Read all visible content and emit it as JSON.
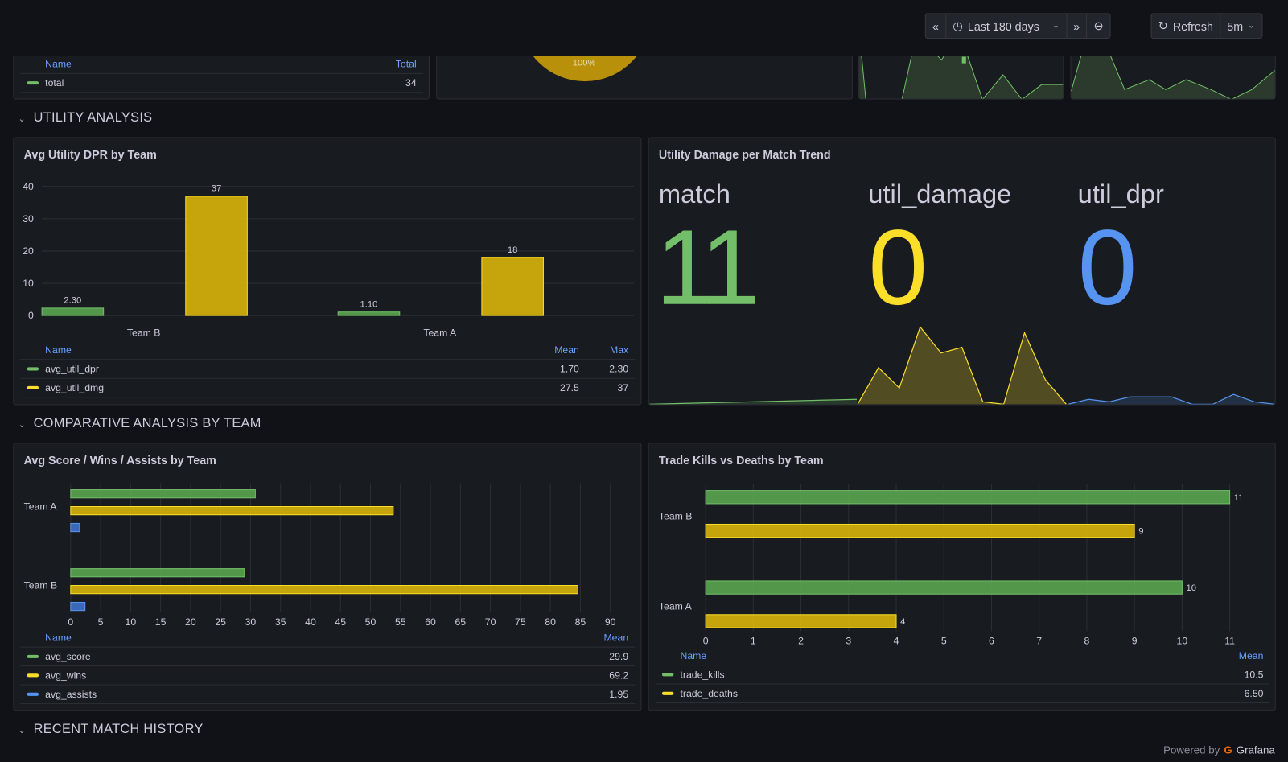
{
  "toolbar": {
    "back_label": "«",
    "time_range": "Last 180 days",
    "forward_label": "»",
    "refresh_label": "Refresh",
    "interval": "5m"
  },
  "top_panels": {
    "legend_header_name": "Name",
    "legend_header_total": "Total",
    "legend_row_name": "total",
    "legend_row_total": "34",
    "pie_label": "100%"
  },
  "rows": {
    "utility": "UTILITY ANALYSIS",
    "comparative": "COMPARATIVE ANALYSIS BY TEAM",
    "recent": "RECENT MATCH HISTORY"
  },
  "footer": {
    "powered_by": "Powered by",
    "brand": "Grafana"
  },
  "colors": {
    "green": "#73bf69",
    "yellow": "#fade2a",
    "blue": "#5794f2",
    "bar_yellow": "#e0b400"
  },
  "panels": {
    "util_dpr": {
      "title": "Avg Utility DPR by Team",
      "legend_headers": [
        "Name",
        "Mean",
        "Max"
      ],
      "legend": [
        {
          "name": "avg_util_dpr",
          "mean": "1.70",
          "max": "2.30",
          "color": "#73bf69"
        },
        {
          "name": "avg_util_dmg",
          "mean": "27.5",
          "max": "37",
          "color": "#fade2a"
        }
      ]
    },
    "util_trend": {
      "title": "Utility Damage per Match Trend",
      "stats": [
        {
          "label": "match",
          "value": "11",
          "color": "#73bf69"
        },
        {
          "label": "util_damage",
          "value": "0",
          "color": "#fade2a"
        },
        {
          "label": "util_dpr",
          "value": "0",
          "color": "#5794f2"
        }
      ]
    },
    "score": {
      "title": "Avg Score / Wins / Assists by Team",
      "legend_headers": [
        "Name",
        "Mean"
      ],
      "legend": [
        {
          "name": "avg_score",
          "mean": "29.9",
          "color": "#73bf69"
        },
        {
          "name": "avg_wins",
          "mean": "69.2",
          "color": "#fade2a"
        },
        {
          "name": "avg_assists",
          "mean": "1.95",
          "color": "#5794f2"
        }
      ]
    },
    "trade": {
      "title": "Trade Kills vs Deaths by Team",
      "legend_headers": [
        "Name",
        "Mean"
      ],
      "legend": [
        {
          "name": "trade_kills",
          "mean": "10.5",
          "color": "#73bf69"
        },
        {
          "name": "trade_deaths",
          "mean": "6.50",
          "color": "#fade2a"
        }
      ]
    }
  },
  "chart_data": [
    {
      "type": "bar",
      "title": "Avg Utility DPR by Team",
      "categories": [
        "Team B",
        "Team A"
      ],
      "series": [
        {
          "name": "avg_util_dpr",
          "values": [
            2.3,
            1.1
          ],
          "labels": [
            "2.30",
            "1.10"
          ]
        },
        {
          "name": "avg_util_dmg",
          "values": [
            37,
            18
          ],
          "labels": [
            "37",
            "18"
          ]
        }
      ],
      "ylim": [
        0,
        40
      ],
      "yticks": [
        "0",
        "10",
        "20",
        "30",
        "40"
      ]
    },
    {
      "type": "area",
      "title": "Utility Damage per Match Trend sparklines",
      "series": [
        {
          "name": "match",
          "values": [
            1,
            2,
            3,
            4,
            5,
            6,
            7,
            8,
            9,
            10,
            11
          ]
        },
        {
          "name": "util_damage",
          "values": [
            0,
            45,
            20,
            95,
            63,
            70,
            3,
            0,
            88,
            30,
            0
          ]
        },
        {
          "name": "util_dpr",
          "values": [
            1,
            3,
            2,
            4,
            4,
            4,
            1,
            1,
            5,
            2,
            1
          ]
        }
      ]
    },
    {
      "type": "bar",
      "orientation": "horizontal",
      "title": "Avg Score / Wins / Assists by Team",
      "categories": [
        "Team A",
        "Team B"
      ],
      "series": [
        {
          "name": "avg_score",
          "values": [
            30.8,
            29
          ]
        },
        {
          "name": "avg_wins",
          "values": [
            53.8,
            84.6
          ]
        },
        {
          "name": "avg_assists",
          "values": [
            1.5,
            2.4
          ]
        }
      ],
      "xlim": [
        0,
        90
      ],
      "xticks": [
        "0",
        "5",
        "10",
        "15",
        "20",
        "25",
        "30",
        "35",
        "40",
        "45",
        "50",
        "55",
        "60",
        "65",
        "70",
        "75",
        "80",
        "85",
        "90"
      ]
    },
    {
      "type": "bar",
      "orientation": "horizontal",
      "title": "Trade Kills vs Deaths by Team",
      "categories": [
        "Team B",
        "Team A"
      ],
      "series": [
        {
          "name": "trade_kills",
          "values": [
            11,
            10
          ],
          "labels": [
            "11",
            "10"
          ]
        },
        {
          "name": "trade_deaths",
          "values": [
            9,
            4
          ],
          "labels": [
            "9",
            "4"
          ]
        }
      ],
      "xlim": [
        0,
        11
      ],
      "xticks": [
        "0",
        "1",
        "2",
        "3",
        "4",
        "5",
        "6",
        "7",
        "8",
        "9",
        "10",
        "11"
      ]
    }
  ]
}
